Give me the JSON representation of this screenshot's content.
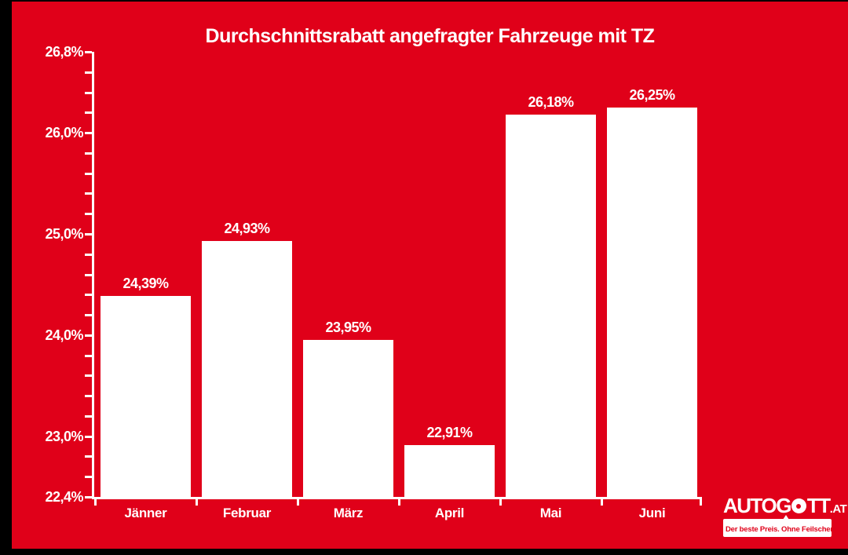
{
  "page": {
    "background_color": "#000000",
    "canvas_color": "#E00019"
  },
  "chart_data": {
    "type": "bar",
    "title": "Durchschnittsrabatt angefragter Fahrzeuge mit TZ",
    "categories": [
      "Jänner",
      "Februar",
      "März",
      "April",
      "Mai",
      "Juni"
    ],
    "values": [
      24.39,
      24.93,
      23.95,
      22.91,
      26.18,
      26.25
    ],
    "value_labels": [
      "24,39%",
      "24,93%",
      "23,95%",
      "22,91%",
      "26,18%",
      "26,25%"
    ],
    "ylim": [
      22.4,
      26.8
    ],
    "y_minor_tick_step": 0.2,
    "y_ticks": [
      {
        "value": 26.8,
        "label": "26,8%"
      },
      {
        "value": 26.0,
        "label": "26,0%"
      },
      {
        "value": 25.0,
        "label": "25,0%"
      },
      {
        "value": 24.0,
        "label": "24,0%"
      },
      {
        "value": 23.0,
        "label": "23,0%"
      },
      {
        "value": 22.4,
        "label": "22,4%"
      }
    ],
    "bar_color": "#FFFFFF",
    "axis_color": "#FFFFFF",
    "label_color": "#FFFFFF",
    "grid": false,
    "legend": false
  },
  "logo": {
    "brand_part1": "AUTOG",
    "brand_part2": "TT",
    "tld": ".AT",
    "tagline": "Der beste Preis. Ohne Feilschen.",
    "text_color": "#FFFFFF",
    "tagline_color": "#E00019"
  }
}
